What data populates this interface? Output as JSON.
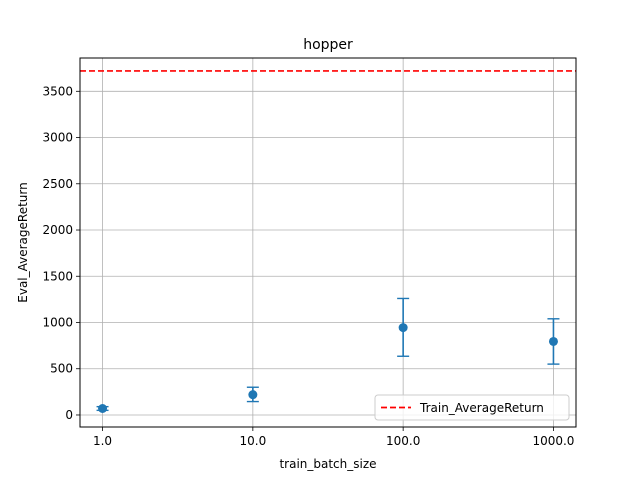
{
  "chart_data": {
    "type": "scatter",
    "title": "hopper",
    "xlabel": "train_batch_size",
    "ylabel": "Eval_AverageReturn",
    "categories": [
      "1.0",
      "10.0",
      "100.0",
      "1000.0"
    ],
    "series": [
      {
        "points": [
          {
            "x": "1.0",
            "y": 70,
            "err_low": 50,
            "err_high": 90
          },
          {
            "x": "10.0",
            "y": 220,
            "err_low": 145,
            "err_high": 300
          },
          {
            "x": "100.0",
            "y": 945,
            "err_low": 635,
            "err_high": 1260
          },
          {
            "x": "1000.0",
            "y": 795,
            "err_low": 550,
            "err_high": 1040
          }
        ],
        "color": "#1f77b4"
      }
    ],
    "reference_line": {
      "name": "Train_AverageReturn",
      "y": 3720,
      "color": "#ff0000",
      "style": "dashed"
    },
    "yticks": [
      0,
      500,
      1000,
      1500,
      2000,
      2500,
      3000,
      3500
    ],
    "ylim": [
      -130,
      3860
    ],
    "x_scale": "log",
    "grid": true,
    "legend_position": "lower-right"
  }
}
